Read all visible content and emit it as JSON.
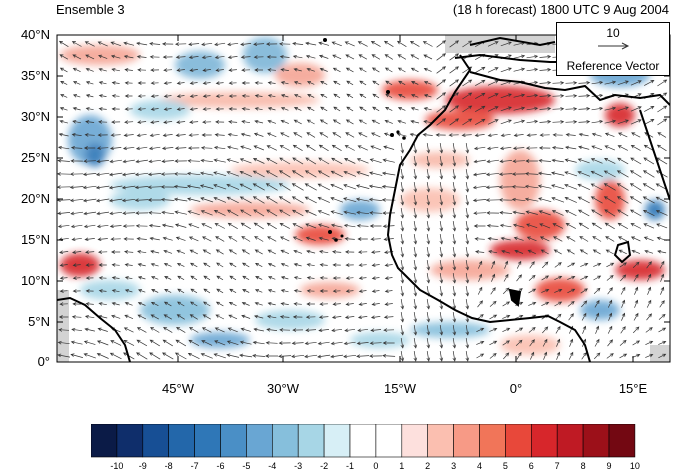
{
  "figure": {
    "title_left": "Ensemble 3",
    "title_right": "(18 h forecast) 1800 UTC 9 Aug 2004"
  },
  "axes": {
    "lat_labels": [
      "40°N",
      "35°N",
      "30°N",
      "25°N",
      "20°N",
      "15°N",
      "10°N",
      "5°N",
      "0°"
    ],
    "lon_labels": [
      "45°W",
      "30°W",
      "15°W",
      "0°",
      "15°E"
    ]
  },
  "reference_vector": {
    "value": "10",
    "label": "Reference Vector"
  },
  "colorbar": {
    "ticks": [
      "-10",
      "-9",
      "-8",
      "-7",
      "-6",
      "-5",
      "-4",
      "-3",
      "-2",
      "-1",
      "0",
      "1",
      "2",
      "3",
      "4",
      "5",
      "6",
      "7",
      "8",
      "9",
      "10"
    ],
    "colors": [
      "#0b1b47",
      "#0f2e6b",
      "#174f95",
      "#2367aa",
      "#2f77b7",
      "#4a8fc6",
      "#69a6d3",
      "#86bfdc",
      "#a7d6e6",
      "#d7eff6",
      "#ffffff",
      "#ffffff",
      "#fde0dd",
      "#fbbfb0",
      "#f79a86",
      "#f17559",
      "#e8483a",
      "#d7262b",
      "#bf1a24",
      "#9c1019",
      "#730812"
    ]
  },
  "colors": {
    "ocean_background": "#ffffff",
    "coast": "#000000",
    "vector": "#333333",
    "missing": "#d3d3d3"
  }
}
